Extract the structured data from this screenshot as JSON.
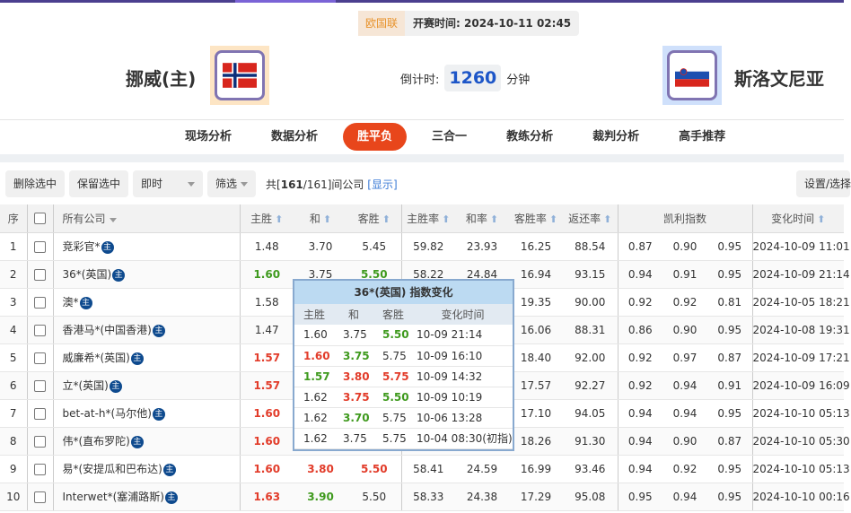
{
  "match": {
    "league": "欧国联",
    "start_label": "开赛时间:",
    "start_time": "2024-10-11 02:45",
    "home": "挪威(主)",
    "away": "斯洛文尼亚",
    "countdown_label": "倒计时:",
    "countdown": "1260",
    "countdown_unit": "分钟"
  },
  "nav": [
    "现场分析",
    "数据分析",
    "胜平负",
    "三合一",
    "教练分析",
    "裁判分析",
    "高手推荐"
  ],
  "nav_active": 2,
  "toolbar": {
    "delete": "删除选中",
    "keep": "保留选中",
    "mode": "即时",
    "filter": "筛选",
    "summary_pre": "共[",
    "count": "161",
    "summary_mid": "/161]间公司",
    "show": "[显示]",
    "settings": "设置/选择"
  },
  "headers": {
    "no": "序",
    "company": "所有公司",
    "home": "主胜",
    "draw": "和",
    "away": "客胜",
    "home_rate": "主胜率",
    "draw_rate": "和率",
    "away_rate": "客胜率",
    "return_rate": "返还率",
    "kelly": "凯利指数",
    "time": "变化时间"
  },
  "badge": "主",
  "colors": {
    "red": "#e23c2a",
    "green": "#3f9a1e",
    "accent": "#e8461b"
  },
  "rows": [
    {
      "no": "1",
      "company": "竞彩官*",
      "home": "1.48",
      "draw": "3.70",
      "away": "5.45",
      "hr": "59.82",
      "dr": "23.93",
      "ar": "16.25",
      "ret": "88.54",
      "k1": "0.87",
      "k2": "0.90",
      "k3": "0.95",
      "time": "2024-10-09 11:01",
      "hc": "",
      "dc": "",
      "ac": ""
    },
    {
      "no": "2",
      "company": "36*(英国)",
      "home": "1.60",
      "draw": "3.75",
      "away": "5.50",
      "hr": "58.22",
      "dr": "24.84",
      "ar": "16.94",
      "ret": "93.15",
      "k1": "0.94",
      "k2": "0.91",
      "k3": "0.95",
      "time": "2024-10-09 21:14",
      "hc": "g",
      "dc": "",
      "ac": "g"
    },
    {
      "no": "3",
      "company": "澳*",
      "home": "1.58",
      "draw": "",
      "away": "",
      "hr": "",
      "dr": "",
      "ar": "19.35",
      "ret": "90.00",
      "k1": "0.92",
      "k2": "0.92",
      "k3": "0.81",
      "time": "2024-10-05 18:21",
      "hc": "",
      "dc": "",
      "ac": ""
    },
    {
      "no": "4",
      "company": "香港马*(中国香港)",
      "home": "1.47",
      "draw": "",
      "away": "",
      "hr": "",
      "dr": "",
      "ar": "16.06",
      "ret": "88.31",
      "k1": "0.86",
      "k2": "0.90",
      "k3": "0.95",
      "time": "2024-10-08 19:31",
      "hc": "",
      "dc": "",
      "ac": ""
    },
    {
      "no": "5",
      "company": "威廉希*(英国)",
      "home": "1.57",
      "draw": "",
      "away": "",
      "hr": "",
      "dr": "",
      "ar": "18.40",
      "ret": "92.00",
      "k1": "0.92",
      "k2": "0.97",
      "k3": "0.87",
      "time": "2024-10-09 17:21",
      "hc": "r",
      "dc": "",
      "ac": ""
    },
    {
      "no": "6",
      "company": "立*(英国)",
      "home": "1.57",
      "draw": "",
      "away": "",
      "hr": "",
      "dr": "",
      "ar": "17.57",
      "ret": "92.27",
      "k1": "0.92",
      "k2": "0.94",
      "k3": "0.91",
      "time": "2024-10-09 16:09",
      "hc": "r",
      "dc": "",
      "ac": ""
    },
    {
      "no": "7",
      "company": "bet-at-h*(马尔他)",
      "home": "1.60",
      "draw": "",
      "away": "",
      "hr": "",
      "dr": "",
      "ar": "17.10",
      "ret": "94.05",
      "k1": "0.94",
      "k2": "0.94",
      "k3": "0.95",
      "time": "2024-10-10 05:13",
      "hc": "r",
      "dc": "",
      "ac": ""
    },
    {
      "no": "8",
      "company": "伟*(直布罗陀)",
      "home": "1.60",
      "draw": "",
      "away": "",
      "hr": "",
      "dr": "",
      "ar": "18.26",
      "ret": "91.30",
      "k1": "0.94",
      "k2": "0.90",
      "k3": "0.87",
      "time": "2024-10-10 05:30",
      "hc": "r",
      "dc": "",
      "ac": ""
    },
    {
      "no": "9",
      "company": "易*(安提瓜和巴布达)",
      "home": "1.60",
      "draw": "3.80",
      "away": "5.50",
      "hr": "58.41",
      "dr": "24.59",
      "ar": "16.99",
      "ret": "93.46",
      "k1": "0.94",
      "k2": "0.92",
      "k3": "0.95",
      "time": "2024-10-10 05:13",
      "hc": "r",
      "dc": "r",
      "ac": "r"
    },
    {
      "no": "10",
      "company": "Interwet*(塞浦路斯)",
      "home": "1.63",
      "draw": "3.90",
      "away": "5.50",
      "hr": "58.33",
      "dr": "24.38",
      "ar": "17.29",
      "ret": "95.08",
      "k1": "0.95",
      "k2": "0.94",
      "k3": "0.95",
      "time": "2024-10-10 00:16",
      "hc": "r",
      "dc": "g",
      "ac": ""
    }
  ],
  "tooltip": {
    "title": "36*(英国) 指数变化",
    "headers": [
      "主胜",
      "和",
      "客胜",
      "变化时间"
    ],
    "rows": [
      {
        "h": "1.60",
        "d": "3.75",
        "a": "5.50",
        "t": "10-09 21:14",
        "hc": "",
        "dc": "",
        "ac": "g"
      },
      {
        "h": "1.60",
        "d": "3.75",
        "a": "5.75",
        "t": "10-09 16:10",
        "hc": "r",
        "dc": "g",
        "ac": ""
      },
      {
        "h": "1.57",
        "d": "3.80",
        "a": "5.75",
        "t": "10-09 14:32",
        "hc": "g",
        "dc": "r",
        "ac": "r"
      },
      {
        "h": "1.62",
        "d": "3.75",
        "a": "5.50",
        "t": "10-09 10:19",
        "hc": "",
        "dc": "r",
        "ac": "g"
      },
      {
        "h": "1.62",
        "d": "3.70",
        "a": "5.75",
        "t": "10-06 13:28",
        "hc": "",
        "dc": "g",
        "ac": ""
      },
      {
        "h": "1.62",
        "d": "3.75",
        "a": "5.75",
        "t": "10-04 08:30(初指)",
        "hc": "",
        "dc": "",
        "ac": ""
      }
    ]
  }
}
